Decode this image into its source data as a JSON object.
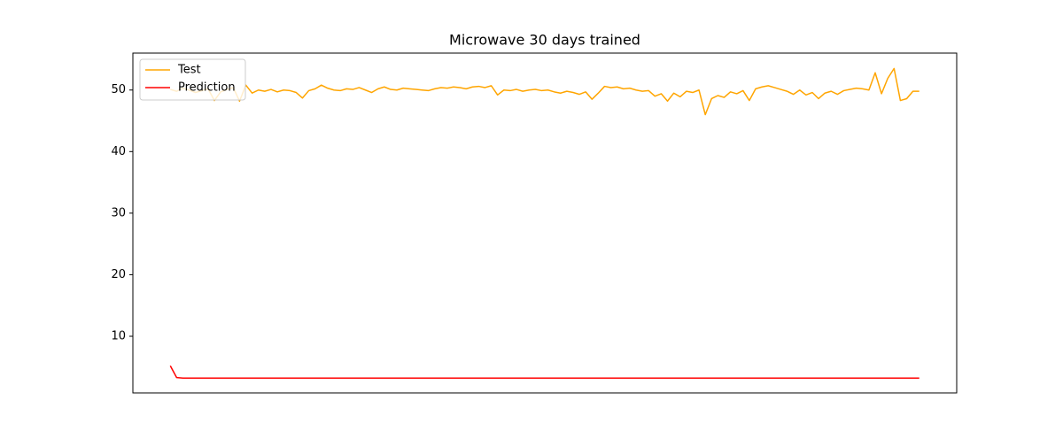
{
  "chart_data": {
    "type": "line",
    "title": "Microwave 30 days trained",
    "series": [
      {
        "name": "Test",
        "color": "#ffa500",
        "values": [
          50.1,
          49.8,
          50.3,
          50.0,
          49.6,
          49.9,
          50.2,
          48.3,
          49.7,
          50.1,
          50.4,
          48.2,
          50.8,
          49.5,
          50.0,
          49.8,
          50.1,
          49.7,
          50.0,
          49.9,
          49.6,
          48.7,
          49.9,
          50.2,
          50.8,
          50.3,
          50.0,
          49.9,
          50.2,
          50.1,
          50.4,
          50.0,
          49.6,
          50.2,
          50.5,
          50.1,
          50.0,
          50.3,
          50.2,
          50.1,
          50.0,
          49.9,
          50.2,
          50.4,
          50.3,
          50.5,
          50.4,
          50.2,
          50.5,
          50.6,
          50.4,
          50.7,
          49.2,
          50.0,
          49.9,
          50.1,
          49.8,
          50.0,
          50.1,
          49.9,
          50.0,
          49.7,
          49.5,
          49.8,
          49.6,
          49.3,
          49.7,
          48.5,
          49.5,
          50.6,
          50.4,
          50.5,
          50.2,
          50.3,
          50.0,
          49.8,
          49.9,
          49.0,
          49.4,
          48.2,
          49.5,
          48.9,
          49.8,
          49.6,
          50.0,
          46.0,
          48.6,
          49.1,
          48.8,
          49.7,
          49.4,
          49.9,
          48.3,
          50.2,
          50.5,
          50.7,
          50.4,
          50.1,
          49.8,
          49.3,
          50.0,
          49.2,
          49.6,
          48.6,
          49.5,
          49.8,
          49.3,
          49.9,
          50.1,
          50.3,
          50.2,
          50.0,
          52.8,
          49.4,
          51.9,
          53.5,
          48.3,
          48.6,
          49.8,
          49.8
        ]
      },
      {
        "name": "Prediction",
        "color": "#ff0000",
        "values": [
          5.2,
          3.3,
          3.2,
          3.2,
          3.2,
          3.2,
          3.2,
          3.2,
          3.2,
          3.2,
          3.2,
          3.2,
          3.2,
          3.2,
          3.2,
          3.2,
          3.2,
          3.2,
          3.2,
          3.2,
          3.2,
          3.2,
          3.2,
          3.2,
          3.2,
          3.2,
          3.2,
          3.2,
          3.2,
          3.2,
          3.2,
          3.2,
          3.2,
          3.2,
          3.2,
          3.2,
          3.2,
          3.2,
          3.2,
          3.2,
          3.2,
          3.2,
          3.2,
          3.2,
          3.2,
          3.2,
          3.2,
          3.2,
          3.2,
          3.2,
          3.2,
          3.2,
          3.2,
          3.2,
          3.2,
          3.2,
          3.2,
          3.2,
          3.2,
          3.2,
          3.2,
          3.2,
          3.2,
          3.2,
          3.2,
          3.2,
          3.2,
          3.2,
          3.2,
          3.2,
          3.2,
          3.2,
          3.2,
          3.2,
          3.2,
          3.2,
          3.2,
          3.2,
          3.2,
          3.2,
          3.2,
          3.2,
          3.2,
          3.2,
          3.2,
          3.2,
          3.2,
          3.2,
          3.2,
          3.2,
          3.2,
          3.2,
          3.2,
          3.2,
          3.2,
          3.2,
          3.2,
          3.2,
          3.2,
          3.2,
          3.2,
          3.2,
          3.2,
          3.2,
          3.2,
          3.2,
          3.2,
          3.2,
          3.2,
          3.2,
          3.2,
          3.2,
          3.2,
          3.2,
          3.2,
          3.2,
          3.2,
          3.2,
          3.2,
          3.2
        ]
      }
    ],
    "xlim": [
      -5.95,
      124.95
    ],
    "ylim": [
      0.8,
      56
    ],
    "yticks": [
      10,
      20,
      30,
      40,
      50
    ],
    "grid": false,
    "legend": "upper left"
  }
}
